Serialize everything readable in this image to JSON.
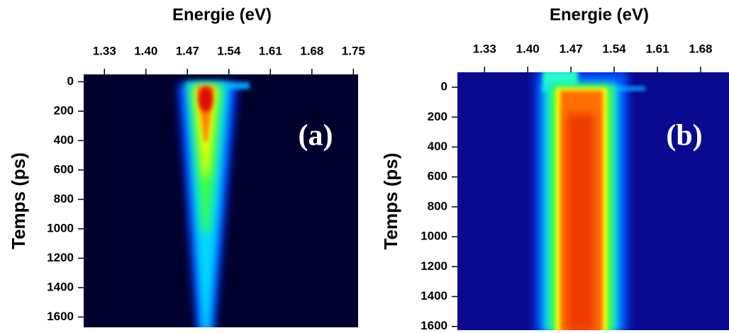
{
  "chart_data": [
    {
      "type": "heatmap",
      "title": "Energie (eV)",
      "y_label": "Temps (ps)",
      "panel_label": "(a)",
      "xlim": [
        1.295,
        1.758
      ],
      "xticks": [
        1.33,
        {
          "value": 1.4,
          "label": "1.40"
        },
        1.47,
        1.54,
        1.61,
        1.68,
        1.75
      ],
      "ylim": [
        -50,
        1670
      ],
      "yticks": [
        0,
        200,
        400,
        600,
        800,
        1000,
        1200,
        1400,
        1600
      ]
    },
    {
      "type": "heatmap",
      "title": "Energie (eV)",
      "y_label": "Temps (ps)",
      "panel_label": "(b)",
      "xlim": [
        1.286,
        1.726
      ],
      "xticks": [
        1.33,
        {
          "value": 1.4,
          "label": "1.40"
        },
        1.47,
        1.54,
        1.61,
        1.68
      ],
      "ylim": [
        -100,
        1625
      ],
      "yticks": [
        0,
        200,
        400,
        600,
        800,
        1000,
        1200,
        1400,
        1600
      ]
    }
  ]
}
